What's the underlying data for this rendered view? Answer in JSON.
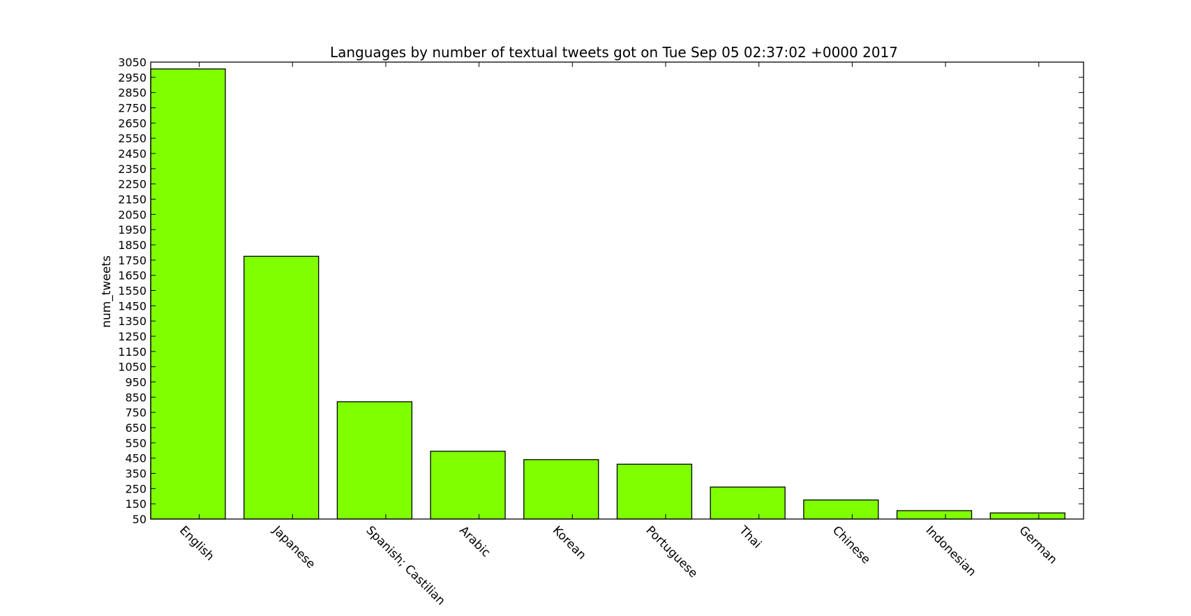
{
  "chart_data": {
    "type": "bar",
    "title": "Languages by number of textual tweets got on Tue Sep 05 02:37:02 +0000 2017",
    "xlabel": "",
    "ylabel": "num_tweets",
    "categories": [
      "English",
      "Japanese",
      "Spanish; Castilian",
      "Arabic",
      "Korean",
      "Portuguese",
      "Thai",
      "Chinese",
      "Indonesian",
      "German"
    ],
    "values": [
      3005,
      1775,
      820,
      495,
      440,
      410,
      260,
      175,
      105,
      90
    ],
    "ylim": [
      50,
      3050
    ],
    "yticks": [
      50,
      150,
      250,
      350,
      450,
      550,
      650,
      750,
      850,
      950,
      1050,
      1150,
      1250,
      1350,
      1450,
      1550,
      1650,
      1750,
      1850,
      1950,
      2050,
      2150,
      2250,
      2350,
      2450,
      2550,
      2650,
      2750,
      2850,
      2950,
      3050
    ],
    "bar_color": "#7fff00",
    "grid": false,
    "legend": "none"
  }
}
